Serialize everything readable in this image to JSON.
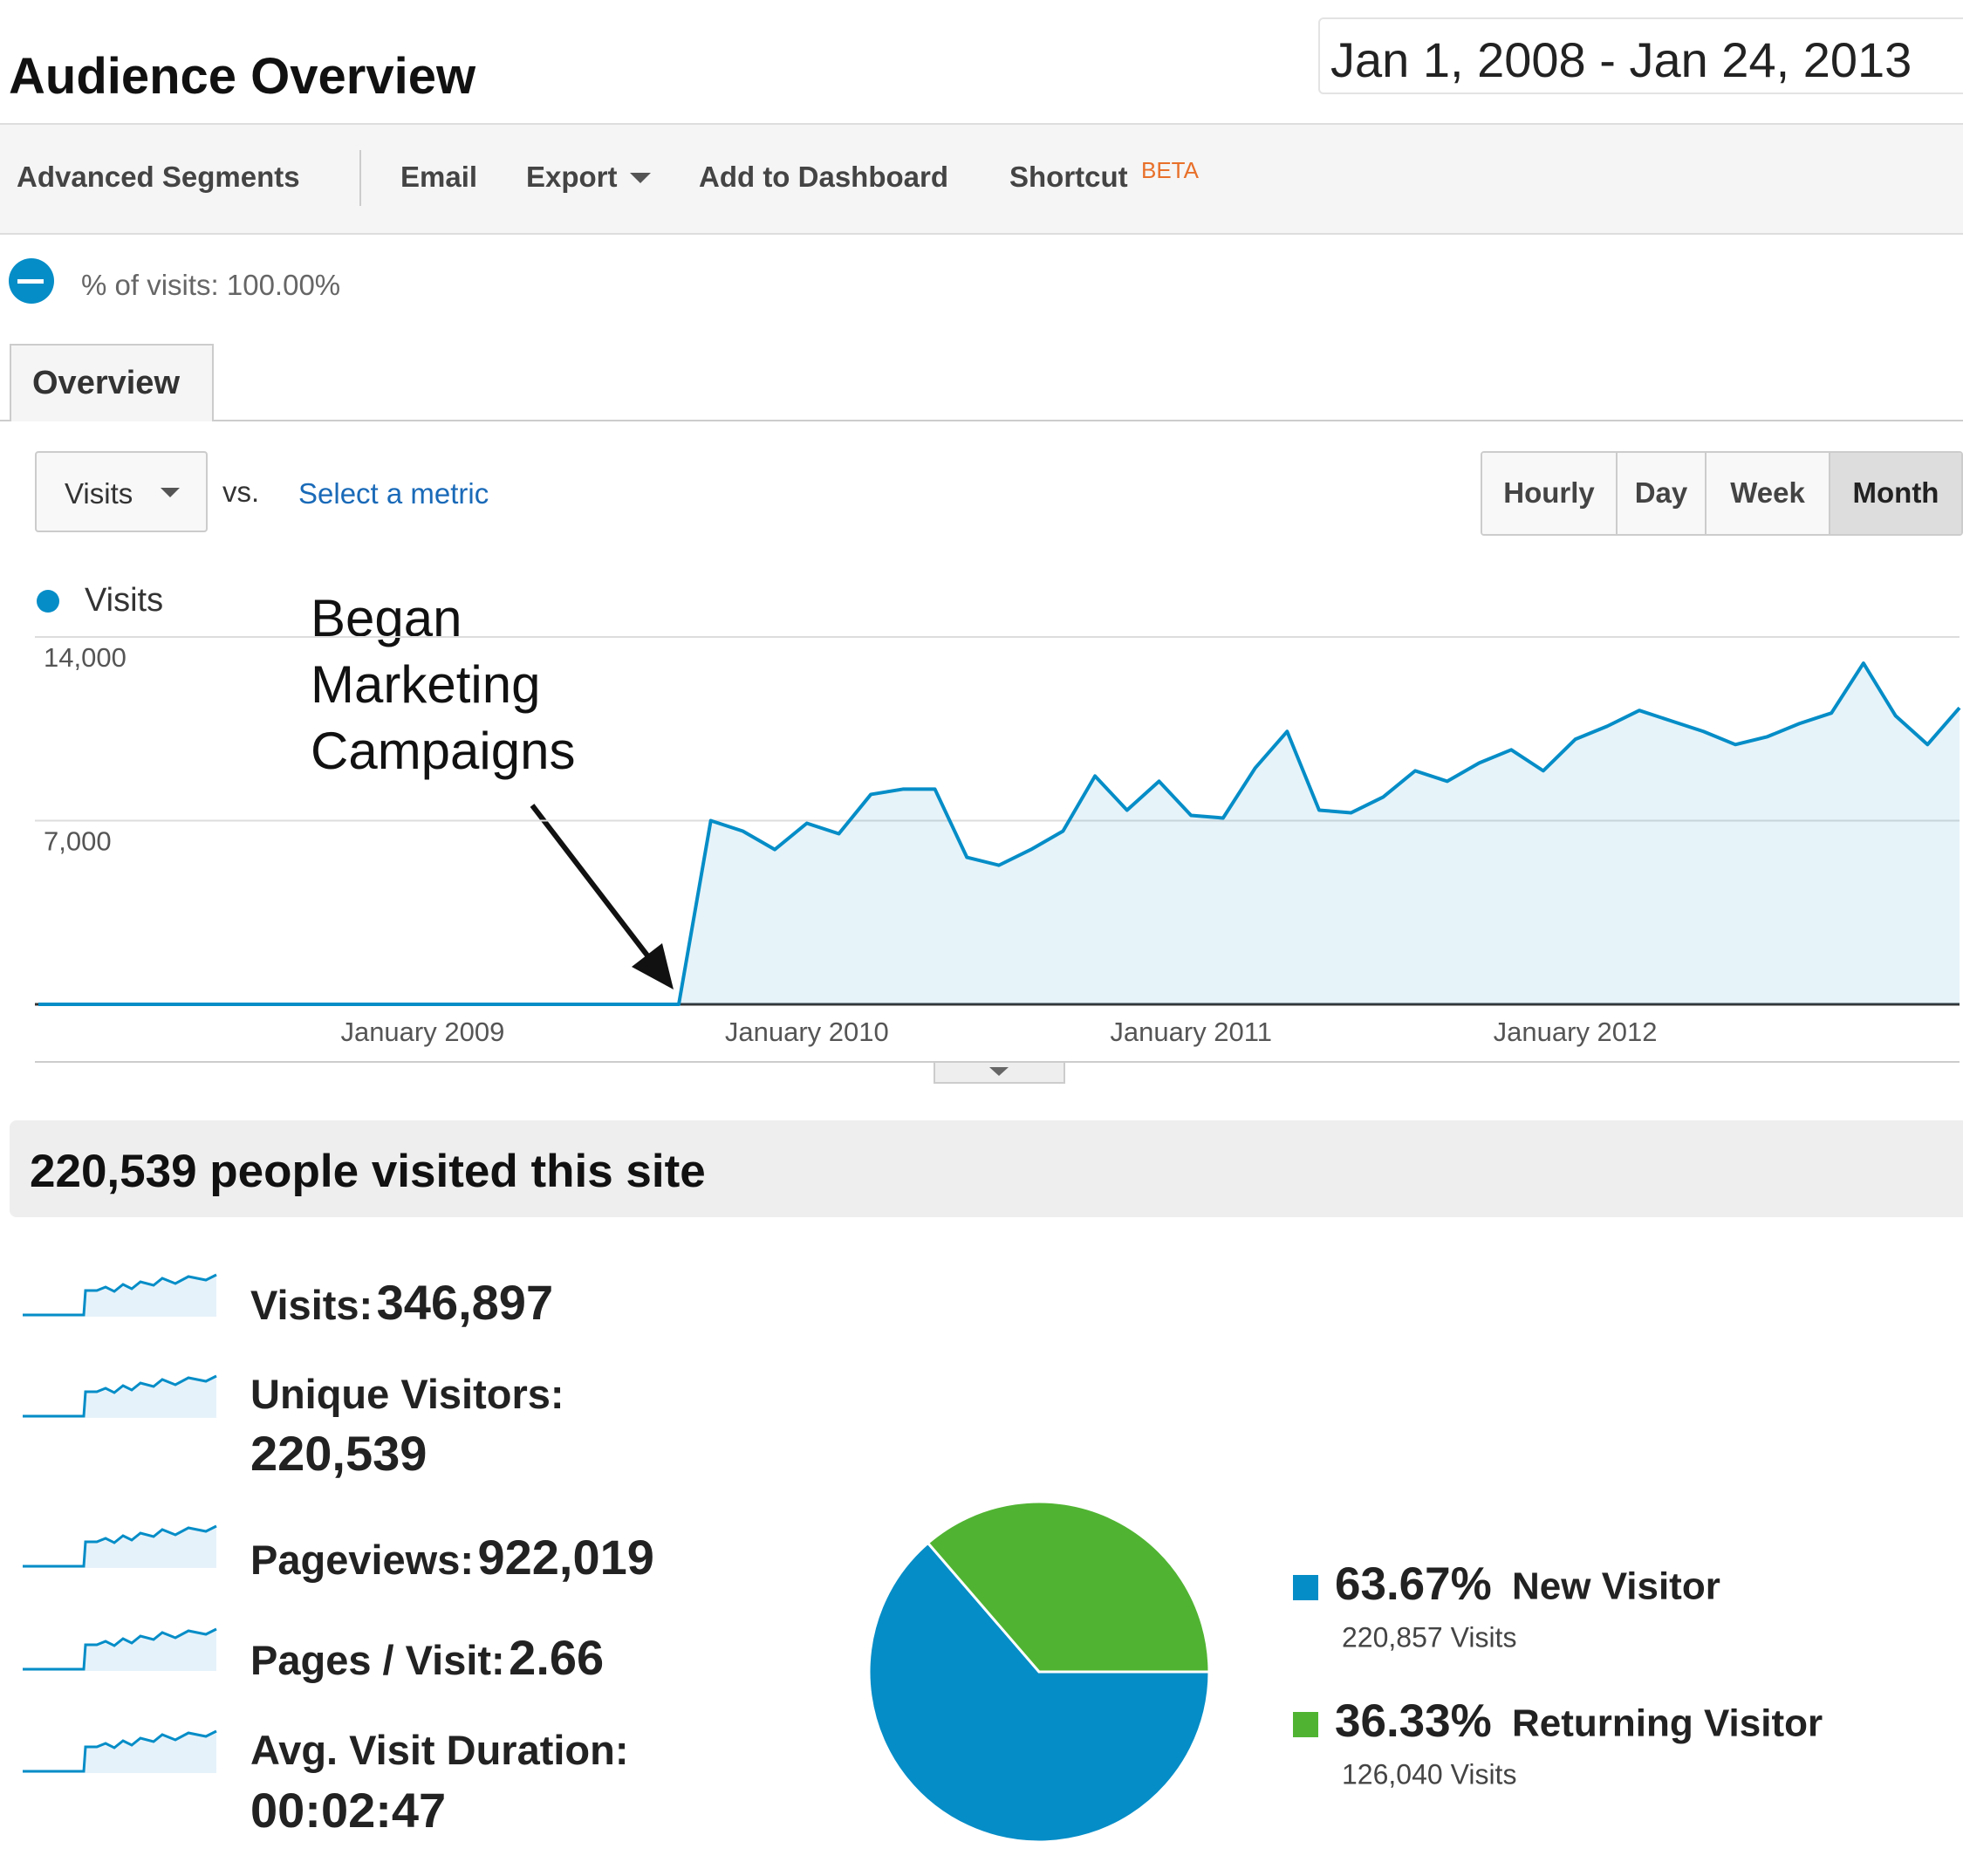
{
  "header": {
    "title": "Audience Overview",
    "date_range": "Jan 1, 2008 - Jan 24, 2013"
  },
  "toolbar": {
    "items": [
      "Advanced Segments",
      "Email",
      "Export",
      "Add to Dashboard",
      "Shortcut"
    ],
    "badge": "BETA"
  },
  "segment": "% of visits: 100.00%",
  "tab": "Overview",
  "controls": {
    "metric": "Visits",
    "vs": "vs.",
    "select_metric": "Select a metric",
    "intervals": [
      "Hourly",
      "Day",
      "Week",
      "Month"
    ],
    "active_interval": "Month"
  },
  "chart_data": {
    "type": "area",
    "categories": [
      null,
      null,
      null,
      null,
      null,
      null,
      null,
      null,
      null,
      null,
      null,
      null,
      "January 2009",
      null,
      null,
      null,
      null,
      null,
      null,
      null,
      null,
      null,
      null,
      null,
      "January 2010",
      null,
      null,
      null,
      null,
      null,
      null,
      null,
      null,
      null,
      null,
      null,
      "January 2011",
      null,
      null,
      null,
      null,
      null,
      null,
      null,
      null,
      null,
      null,
      null,
      "January 2012",
      null,
      null,
      null,
      null,
      null,
      null,
      null,
      null,
      null,
      null,
      null,
      null
    ],
    "series": [
      {
        "name": "Visits",
        "color": "#058dc7",
        "values": [
          0,
          0,
          0,
          0,
          0,
          0,
          0,
          0,
          0,
          0,
          0,
          0,
          0,
          0,
          0,
          0,
          0,
          0,
          0,
          0,
          0,
          7000,
          6600,
          5900,
          6900,
          6500,
          8000,
          8200,
          8200,
          5600,
          5300,
          5900,
          6600,
          8700,
          7400,
          8500,
          7200,
          7100,
          9000,
          10400,
          7400,
          7300,
          7900,
          8900,
          8500,
          9200,
          9700,
          8900,
          10100,
          10600,
          11200,
          10800,
          10400,
          9900,
          10200,
          10700,
          11100,
          13000,
          11000,
          9900,
          11300
        ]
      }
    ],
    "ylim": [
      0,
      14000
    ],
    "yticks": [
      {
        "value": 7000,
        "label": "7,000"
      },
      {
        "value": 14000,
        "label": "14,000"
      }
    ],
    "grid": true,
    "annotation": [
      "Began",
      "Marketing",
      "Campaigns"
    ]
  },
  "summary": "220,539 people visited this site",
  "metrics": [
    {
      "label": "Visits:",
      "value": "346,897"
    },
    {
      "label": "Unique Visitors:",
      "value": "220,539"
    },
    {
      "label": "Pageviews:",
      "value": "922,019"
    },
    {
      "label": "Pages / Visit:",
      "value": "2.66"
    },
    {
      "label": "Avg. Visit Duration:",
      "value": "00:02:47"
    }
  ],
  "pie": {
    "type": "pie",
    "categories": [
      "New Visitor",
      "Returning Visitor"
    ],
    "values": [
      63.67,
      36.33
    ],
    "value_labels": [
      "63.67%",
      "36.33%"
    ],
    "visit_labels": [
      "220,857 Visits",
      "126,040 Visits"
    ],
    "colors": [
      "#058dc7",
      "#50b432"
    ]
  }
}
